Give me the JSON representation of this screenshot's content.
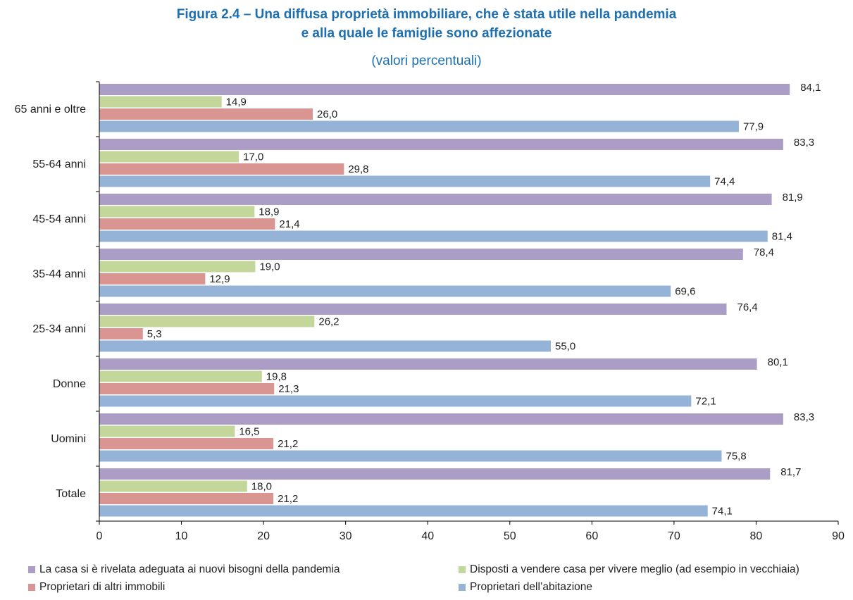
{
  "header": {
    "title_line1": "Figura 2.4 – Una diffusa proprietà immobiliare, che è stata utile nella pandemia",
    "title_line2": "e alla quale le famiglie sono affezionate",
    "subtitle": "(valori percentuali)"
  },
  "colors": {
    "series_purple": "#ab9dc5",
    "series_green": "#c4d79b",
    "series_red": "#d99592",
    "series_blue": "#95b3d7",
    "title": "#1d6fb0"
  },
  "chart_data": {
    "type": "bar",
    "orientation": "horizontal",
    "categories": [
      "65 anni e oltre",
      "55-64 anni",
      "45-54 anni",
      "35-44 anni",
      "25-34 anni",
      "Donne",
      "Uomini",
      "Totale"
    ],
    "series": [
      {
        "name": "La casa si è rivelata adeguata ai nuovi bisogni della pandemia",
        "color": "#ab9dc5",
        "values": [
          84.1,
          83.3,
          81.9,
          78.4,
          76.4,
          80.1,
          83.3,
          81.7
        ],
        "labels": [
          "84,1",
          "83,3",
          "81,9",
          "78,4",
          "76,4",
          "80,1",
          "83,3",
          "81,7"
        ]
      },
      {
        "name": "Disposti a vendere casa per vivere meglio (ad esempio in vecchiaia)",
        "color": "#c4d79b",
        "values": [
          14.9,
          17.0,
          18.9,
          19.0,
          26.2,
          19.8,
          16.5,
          18.0
        ],
        "labels": [
          "14,9",
          "17,0",
          "18,9",
          "19,0",
          "26,2",
          "19,8",
          "16,5",
          "18,0"
        ]
      },
      {
        "name": "Proprietari di altri immobili",
        "color": "#d99592",
        "values": [
          26.0,
          29.8,
          21.4,
          12.9,
          5.3,
          21.3,
          21.2,
          21.2
        ],
        "labels": [
          "26,0",
          "29,8",
          "21,4",
          "12,9",
          "5,3",
          "21,3",
          "21,2",
          "21,2"
        ]
      },
      {
        "name": "Proprietari dell’abitazione",
        "color": "#95b3d7",
        "values": [
          77.9,
          74.4,
          81.4,
          69.6,
          55.0,
          72.1,
          75.8,
          74.1
        ],
        "labels": [
          "77,9",
          "74,4",
          "81,4",
          "69,6",
          "55,0",
          "72,1",
          "75,8",
          "74,1"
        ]
      }
    ],
    "xlim": [
      0,
      90
    ],
    "xticks": [
      "0",
      "10",
      "20",
      "30",
      "40",
      "50",
      "60",
      "70",
      "80",
      "90"
    ],
    "legend_position": "bottom",
    "grid": false
  },
  "legend": {
    "items": [
      {
        "label": "La casa si è rivelata adeguata ai nuovi bisogni della pandemia",
        "color": "#ab9dc5"
      },
      {
        "label": "Disposti a vendere casa per vivere meglio (ad esempio in vecchiaia)",
        "color": "#c4d79b"
      },
      {
        "label": "Proprietari di altri immobili",
        "color": "#d99592"
      },
      {
        "label": "Proprietari dell’abitazione",
        "color": "#95b3d7"
      }
    ]
  }
}
